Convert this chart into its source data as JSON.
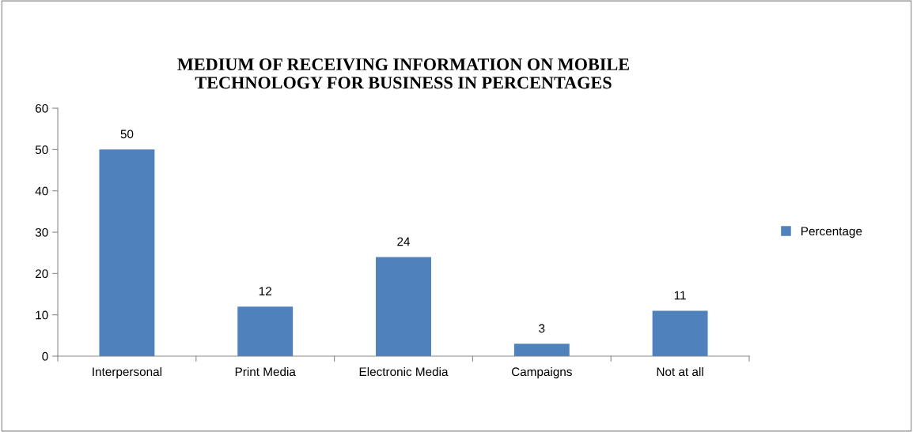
{
  "chart_data": {
    "type": "bar",
    "title": "MEDIUM OF RECEIVING INFORMATION ON MOBILE\nTECHNOLOGY FOR BUSINESS IN PERCENTAGES",
    "categories": [
      "Interpersonal",
      "Print Media",
      "Electronic Media",
      "Campaigns",
      "Not at all"
    ],
    "series": [
      {
        "name": "Percentage",
        "color": "#4f81bd",
        "values": [
          50,
          12,
          24,
          3,
          11
        ]
      }
    ],
    "ylim": [
      0,
      60
    ],
    "yticks": [
      0,
      10,
      20,
      30,
      40,
      50,
      60
    ],
    "grid": false,
    "legend": "right",
    "data_labels": true
  }
}
